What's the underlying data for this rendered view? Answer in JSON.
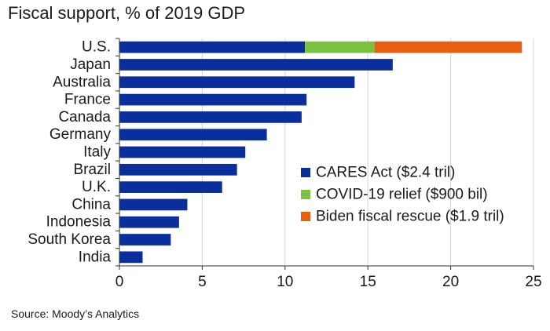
{
  "chart_data": {
    "type": "bar",
    "orientation": "horizontal",
    "stacked": true,
    "title": "Fiscal support, % of 2019 GDP",
    "source": "Source: Moody’s Analytics",
    "categories": [
      "U.S.",
      "Japan",
      "Australia",
      "France",
      "Canada",
      "Germany",
      "Italy",
      "Brazil",
      "U.K.",
      "China",
      "Indonesia",
      "South Korea",
      "India"
    ],
    "series": [
      {
        "name": "CARES Act ($2.4 tril)",
        "color": "#0a2f9c",
        "values": [
          11.2,
          16.5,
          14.2,
          11.3,
          11.0,
          8.9,
          7.6,
          7.1,
          6.2,
          4.1,
          3.6,
          3.1,
          1.4
        ]
      },
      {
        "name": "COVID-19 relief ($900 bil)",
        "color": "#7ac142",
        "values": [
          4.2,
          0,
          0,
          0,
          0,
          0,
          0,
          0,
          0,
          0,
          0,
          0,
          0
        ]
      },
      {
        "name": "Biden fiscal rescue ($1.9 tril)",
        "color": "#e8600f",
        "values": [
          8.9,
          0,
          0,
          0,
          0,
          0,
          0,
          0,
          0,
          0,
          0,
          0,
          0
        ]
      }
    ],
    "xlim": [
      0,
      25
    ],
    "xticks": [
      0,
      5,
      10,
      15,
      20,
      25
    ],
    "xlabel": "",
    "ylabel": "",
    "grid": "vertical",
    "legend_position": "lower-right"
  }
}
